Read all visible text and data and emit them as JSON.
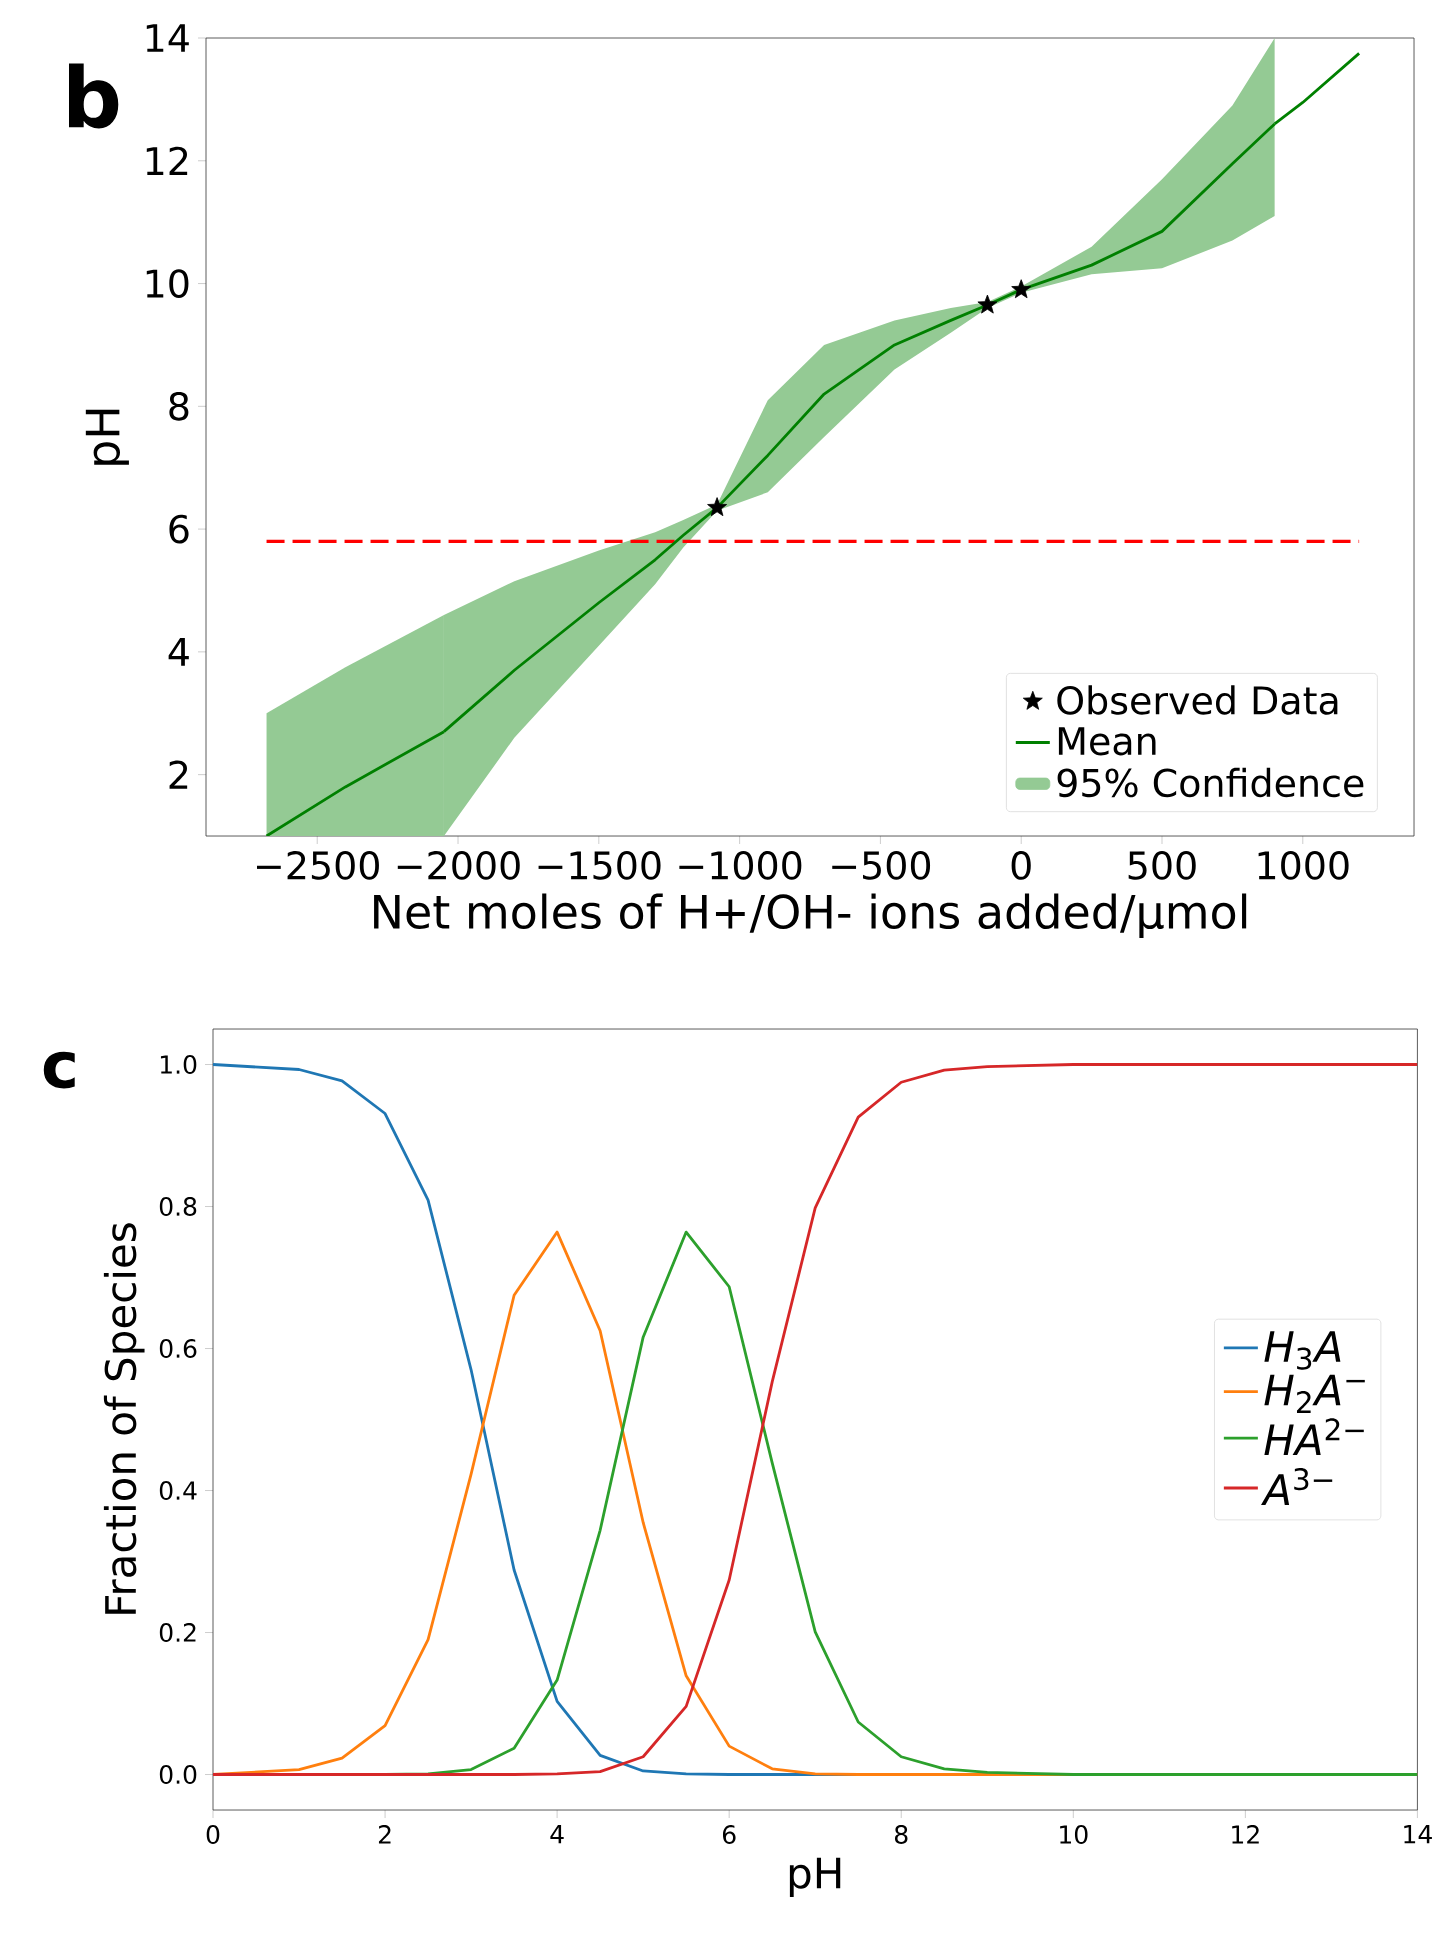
{
  "chart_data": [
    {
      "type": "line",
      "annotations": [
        "b"
      ],
      "xlabel": "Net moles of H+/OH- ions added/µmol",
      "ylabel": "pH",
      "xlim": [
        -2895,
        1395
      ],
      "xticks": [
        {
          "value": -2500,
          "label": "−2500"
        },
        {
          "value": -2000,
          "label": "−2000"
        },
        {
          "value": -1500,
          "label": "−1500"
        },
        {
          "value": -1000,
          "label": "−1000"
        },
        {
          "value": -500,
          "label": "−500"
        },
        0,
        500,
        1000
      ],
      "ylim": [
        1,
        14
      ],
      "yticks": [
        2,
        4,
        6,
        8,
        10,
        12,
        14
      ],
      "legend": "bottom right",
      "ref_lines": [
        {
          "axis": "y",
          "value": 5.8,
          "color": "#ff0000",
          "line_style": "dashed"
        }
      ],
      "series": [
        {
          "name": "Observed Data",
          "type": "scatter",
          "marker": "star",
          "color": "#000000",
          "x": [
            -1080,
            -120,
            0
          ],
          "values": [
            6.35,
            9.65,
            9.9
          ]
        },
        {
          "name": "Mean",
          "type": "line",
          "color": "#008000",
          "x": [
            -2050,
            -1800,
            -1500,
            -1300,
            -1200,
            -1080,
            -900,
            -700,
            -450,
            -250,
            -120,
            0,
            250,
            500,
            750,
            900
          ],
          "values": [
            2.7,
            3.7,
            4.8,
            5.5,
            5.9,
            6.35,
            7.2,
            8.2,
            9.0,
            9.4,
            9.65,
            9.9,
            10.3,
            10.85,
            11.95,
            12.6
          ],
          "upper": [
            4.6,
            5.15,
            5.65,
            5.95,
            6.15,
            6.4,
            8.1,
            9.0,
            9.4,
            9.6,
            9.7,
            9.95,
            10.6,
            11.7,
            12.9,
            14.0
          ],
          "lower": [
            1.0,
            2.6,
            4.1,
            5.1,
            5.7,
            6.3,
            6.6,
            7.5,
            8.6,
            9.2,
            9.6,
            9.85,
            10.15,
            10.25,
            10.7,
            11.1
          ]
        },
        {
          "type": "line",
          "color": "#008000",
          "x": [
            -2680,
            -2400,
            -2050,
            0,
            900,
            1000,
            1200
          ],
          "values": [
            1.0,
            1.8,
            2.7,
            null,
            12.6,
            12.95,
            13.75
          ]
        },
        {
          "name": "95% Confidence",
          "type": "area",
          "color": "#94ca94",
          "x": [
            -2680,
            -2400,
            -2050
          ],
          "values": [
            3.0,
            3.75,
            4.6
          ]
        }
      ]
    },
    {
      "type": "line",
      "annotations": [
        "c"
      ],
      "xlabel": "pH",
      "ylabel": "Fraction of Species",
      "xlim": [
        0,
        14
      ],
      "xticks": [
        0,
        2,
        4,
        6,
        8,
        10,
        12,
        14
      ],
      "ylim": [
        -0.05,
        1.05
      ],
      "yticks": [
        {
          "value": 0,
          "label": "0.0"
        },
        {
          "value": 0.2,
          "label": "0.2"
        },
        {
          "value": 0.4,
          "label": "0.4"
        },
        {
          "value": 0.6,
          "label": "0.6"
        },
        {
          "value": 0.8,
          "label": "0.8"
        },
        {
          "value": 1,
          "label": "1.0"
        }
      ],
      "legend": "right",
      "x": [
        0,
        1,
        1.5,
        2,
        2.5,
        3,
        3.5,
        4,
        4.5,
        5,
        5.5,
        6,
        6.5,
        7,
        7.5,
        8,
        8.5,
        9,
        10,
        14
      ],
      "series": [
        {
          "name": "*H*$_{3}$*A*",
          "color": "#1f77b4",
          "values": [
            1.0,
            0.993,
            0.977,
            0.931,
            0.809,
            0.57,
            0.288,
            0.103,
            0.027,
            0.005,
            0.001,
            0,
            0,
            0,
            0,
            null,
            null,
            null,
            null,
            null
          ]
        },
        {
          "name": "*H*$_{2}$*A*$^{−}$",
          "color": "#ff7f0e",
          "values": [
            0,
            0.007,
            0.023,
            0.069,
            0.19,
            0.423,
            0.675,
            0.764,
            0.625,
            0.355,
            0.139,
            0.04,
            0.008,
            0.001,
            0,
            0,
            0,
            0,
            0,
            0
          ]
        },
        {
          "name": "*HA*$^{2−}$",
          "color": "#2ca02c",
          "values": [
            null,
            null,
            null,
            0,
            0.001,
            0.007,
            0.037,
            0.133,
            0.344,
            0.616,
            0.764,
            0.687,
            0.439,
            0.201,
            0.074,
            0.025,
            0.008,
            0.003,
            0,
            0
          ]
        },
        {
          "name": "*A*$^{3−}$",
          "color": "#d62728",
          "values": [
            0,
            0,
            0,
            0,
            0,
            0,
            0,
            0.001,
            0.004,
            0.025,
            0.096,
            0.274,
            0.553,
            0.798,
            0.926,
            0.975,
            0.992,
            0.997,
            1.0,
            1.0
          ]
        }
      ]
    }
  ]
}
